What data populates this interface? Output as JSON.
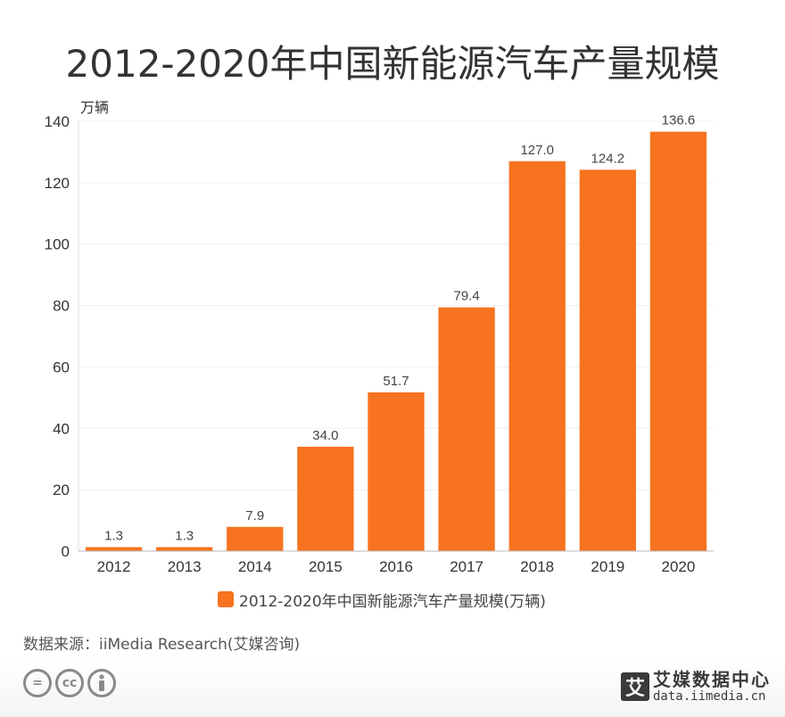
{
  "title": "2012-2020年中国新能源汽车产量规模",
  "source": "数据来源：iiMedia Research(艾媒咨询)",
  "brand": {
    "logo_char": "艾",
    "name": "艾媒数据中心",
    "url": "data.iimedia.cn"
  },
  "license_icons": [
    "equals-icon",
    "cc-icon",
    "person-icon"
  ],
  "license_labels": {
    "cc": "cc"
  },
  "colors": {
    "bar": "#F7731F",
    "axis_text": "#333333",
    "grid": "#eeeeee"
  },
  "chart_data": {
    "type": "bar",
    "title": "2012-2020年中国新能源汽车产量规模",
    "ylabel": "万辆",
    "xlabel": "",
    "categories": [
      "2012",
      "2013",
      "2014",
      "2015",
      "2016",
      "2017",
      "2018",
      "2019",
      "2020"
    ],
    "series": [
      {
        "name": "2012-2020年中国新能源汽车产量规模(万辆)",
        "values": [
          1.3,
          1.3,
          7.9,
          34.0,
          51.7,
          79.4,
          127.0,
          124.2,
          136.6
        ],
        "labels": [
          "1.3",
          "1.3",
          "7.9",
          "34.0",
          "51.7",
          "79.4",
          "127.0",
          "124.2",
          "136.6"
        ]
      }
    ],
    "ylim": [
      0,
      140
    ],
    "yticks": [
      0,
      20,
      40,
      60,
      80,
      100,
      120,
      140
    ],
    "grid": true,
    "legend": "bottom"
  }
}
